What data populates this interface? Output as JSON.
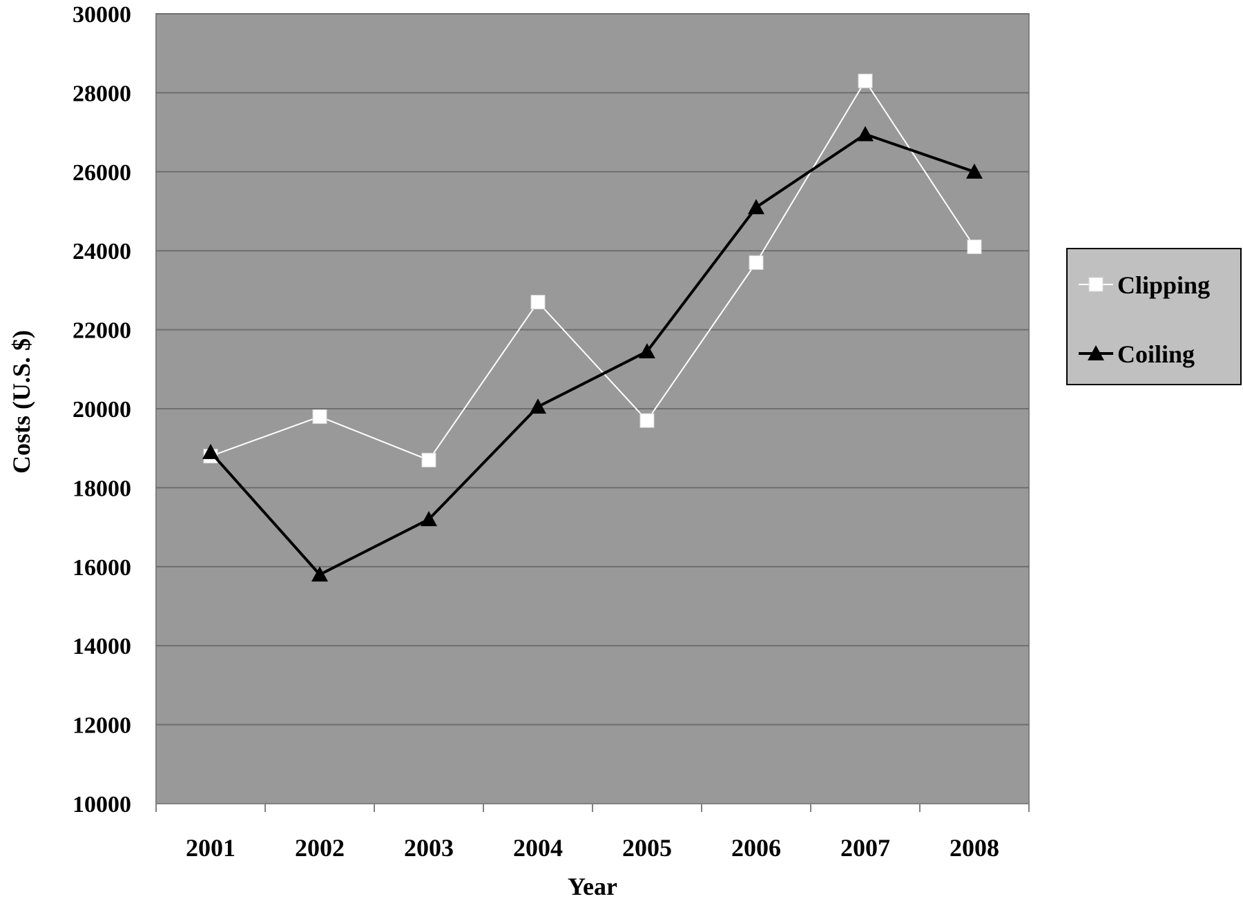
{
  "chart_data": {
    "type": "line",
    "xlabel": "Year",
    "ylabel": "Costs (U.S. $)",
    "categories": [
      "2001",
      "2002",
      "2003",
      "2004",
      "2005",
      "2006",
      "2007",
      "2008"
    ],
    "ylim": [
      10000,
      30000
    ],
    "yticks": [
      "10000",
      "12000",
      "14000",
      "16000",
      "18000",
      "20000",
      "22000",
      "24000",
      "26000",
      "28000",
      "30000"
    ],
    "grid": true,
    "legend_position": "right",
    "plot_background": "#999999",
    "series": [
      {
        "name": "Clipping",
        "marker": "square",
        "color": "#ffffff",
        "values": [
          18800,
          19800,
          18700,
          22700,
          19700,
          23700,
          28300,
          24100
        ]
      },
      {
        "name": "Coiling",
        "marker": "triangle",
        "color": "#000000",
        "values": [
          18900,
          15800,
          17200,
          20050,
          21450,
          25100,
          26950,
          26000
        ]
      }
    ]
  }
}
